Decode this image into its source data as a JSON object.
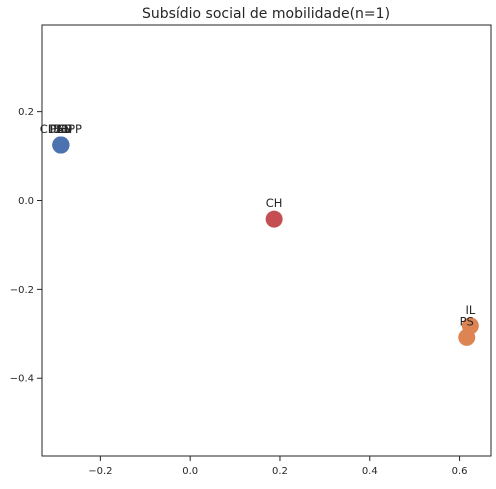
{
  "chart_data": {
    "type": "scatter",
    "title": "Subsídio social de mobilidade(n=1)",
    "xlabel": "",
    "ylabel": "",
    "xlim": [
      -0.33,
      0.67
    ],
    "ylim": [
      -0.575,
      0.395
    ],
    "xticks": [
      -0.2,
      0.0,
      0.2,
      0.4,
      0.6
    ],
    "xtick_labels": [
      "−0.2",
      "0.0",
      "0.2",
      "0.4",
      "0.6"
    ],
    "yticks": [
      0.2,
      0.0,
      -0.2,
      -0.4
    ],
    "ytick_labels": [
      "0.2",
      "0.0",
      "−0.2",
      "−0.4"
    ],
    "grid": false,
    "colors": {
      "blue": "#4c72b0",
      "red": "#c44e52",
      "orange": "#dd8452"
    },
    "points": [
      {
        "label": "BE",
        "x": -0.288,
        "y": 0.125,
        "color": "#4c72b0"
      },
      {
        "label": "PCP",
        "x": -0.288,
        "y": 0.125,
        "color": "#4c72b0"
      },
      {
        "label": "PEV",
        "x": -0.288,
        "y": 0.125,
        "color": "#4c72b0"
      },
      {
        "label": "PAN",
        "x": -0.288,
        "y": 0.125,
        "color": "#4c72b0"
      },
      {
        "label": "L",
        "x": -0.288,
        "y": 0.125,
        "color": "#4c72b0"
      },
      {
        "label": "PSD",
        "x": -0.288,
        "y": 0.125,
        "color": "#4c72b0"
      },
      {
        "label": "CDS-PP",
        "x": -0.288,
        "y": 0.125,
        "color": "#4c72b0"
      },
      {
        "label": "CH",
        "x": 0.187,
        "y": -0.042,
        "color": "#c44e52"
      },
      {
        "label": "IL",
        "x": 0.624,
        "y": -0.282,
        "color": "#dd8452"
      },
      {
        "label": "PS",
        "x": 0.616,
        "y": -0.308,
        "color": "#dd8452"
      }
    ]
  }
}
